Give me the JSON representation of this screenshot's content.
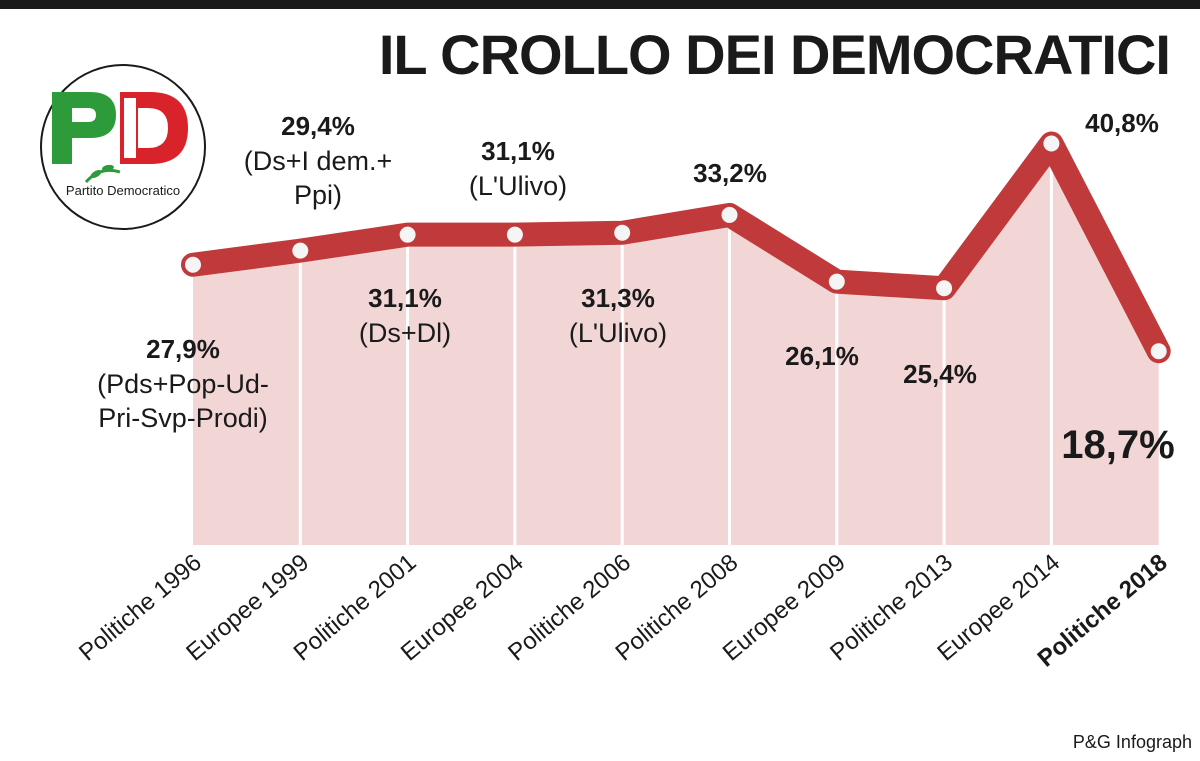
{
  "title": "IL CROLLO DEI DEMOCRATICI",
  "credit": "P&G Infograph",
  "logo": {
    "line1": "PD",
    "text": "Partito Democratico"
  },
  "colors": {
    "line": "#c0393b",
    "area": "#f2d6d6",
    "text": "#1a1a1a",
    "dot": "#f5f5f5"
  },
  "chart_data": {
    "type": "line",
    "title": "IL CROLLO DEI DEMOCRATICI",
    "categories": [
      "Politiche 1996",
      "Europee 1999",
      "Politiche 2001",
      "Europee 2004",
      "Politiche 2006",
      "Politiche 2008",
      "Europee 2009",
      "Politiche 2013",
      "Europee 2014",
      "Politiche 2018"
    ],
    "values": [
      27.9,
      29.4,
      31.1,
      31.1,
      31.3,
      33.2,
      26.1,
      25.4,
      40.8,
      18.7
    ],
    "value_labels": [
      "27,9%",
      "29,4%",
      "31,1%",
      "31,1%",
      "31,3%",
      "33,2%",
      "26,1%",
      "25,4%",
      "40,8%",
      "18,7%"
    ],
    "notes": [
      "(Pds+Pop-Ud-\nPri-Svp-Prodi)",
      "(Ds+I dem.+\nPpi)",
      "(Ds+Dl)",
      "(L'Ulivo)",
      "(L'Ulivo)",
      "",
      "",
      "",
      "",
      ""
    ],
    "highlight_category": "Politiche 2018",
    "xlabel": "",
    "ylabel": "",
    "grid": false
  }
}
